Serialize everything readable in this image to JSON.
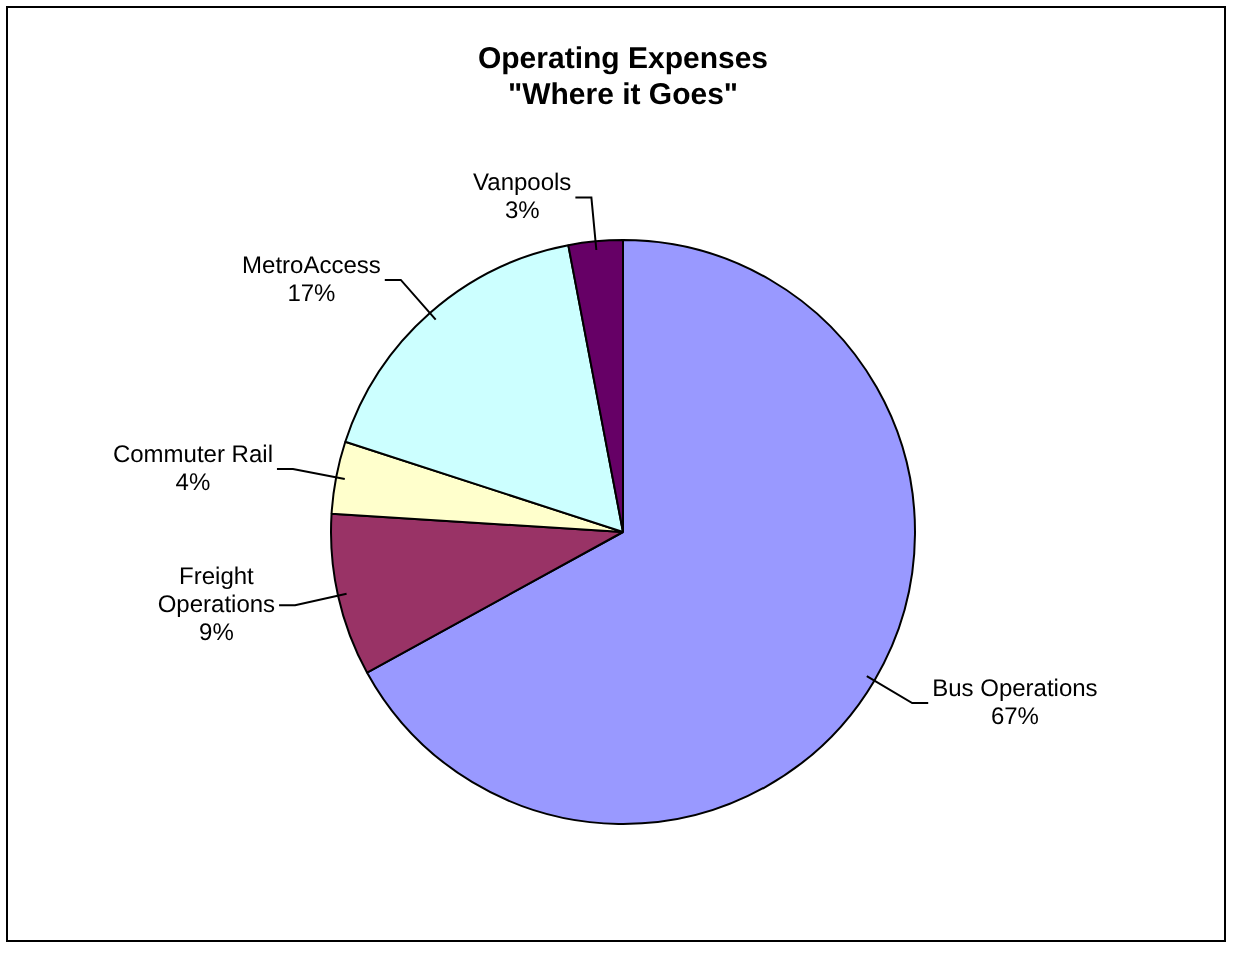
{
  "chart_data": {
    "type": "pie",
    "title": "Operating Expenses\n\"Where it Goes\"",
    "categories": [
      "Bus Operations",
      "Freight Operations",
      "Commuter Rail",
      "MetroAccess",
      "Vanpools"
    ],
    "values": [
      67,
      9,
      4,
      17,
      3
    ],
    "value_labels": [
      "67%",
      "9%",
      "4%",
      "17%",
      "3%"
    ],
    "colors": [
      "#9999ff",
      "#993366",
      "#ffffcc",
      "#ccffff",
      "#660066"
    ],
    "legend": false
  }
}
